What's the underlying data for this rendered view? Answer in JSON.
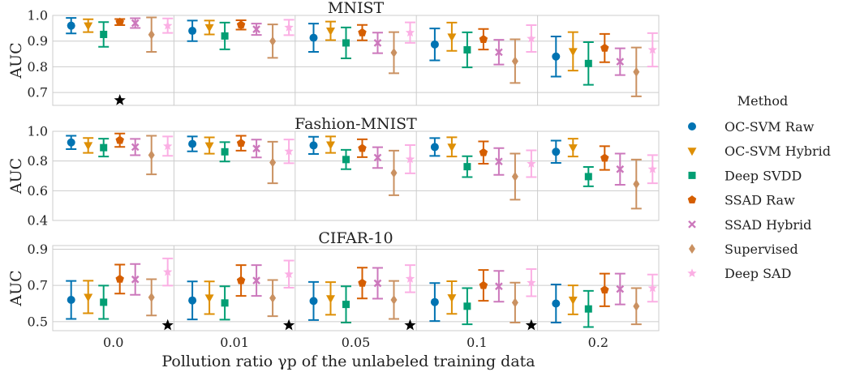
{
  "chart_data": {
    "type": "scatter",
    "description": "Mean AUC with error bars (std) per method and pollution ratio",
    "xlabel": "Pollution ratio γp of the unlabeled training data",
    "x_categories": [
      "0.0",
      "0.01",
      "0.05",
      "0.1",
      "0.2"
    ],
    "legend": {
      "title": "Method",
      "placement": "right"
    },
    "methods": [
      {
        "name": "OC-SVM Raw",
        "color": "#0173b2",
        "marker": "circle"
      },
      {
        "name": "OC-SVM Hybrid",
        "color": "#de8f05",
        "marker": "triangle-down"
      },
      {
        "name": "Deep SVDD",
        "color": "#029e73",
        "marker": "square"
      },
      {
        "name": "SSAD Raw",
        "color": "#d55e00",
        "marker": "pentagon"
      },
      {
        "name": "SSAD Hybrid",
        "color": "#cc78bc",
        "marker": "x"
      },
      {
        "name": "Supervised",
        "color": "#ca9161",
        "marker": "diamond"
      },
      {
        "name": "Deep SAD",
        "color": "#fbafe4",
        "marker": "star"
      }
    ],
    "panels": [
      {
        "title": "MNIST",
        "ylabel": "AUC",
        "ylim": [
          0.65,
          1.0
        ],
        "yticks": [
          "0.7",
          "0.8",
          "0.9",
          "1.0"
        ],
        "yticks_values": [
          0.7,
          0.8,
          0.9,
          1.0
        ],
        "best_markers": [
          {
            "x_index": 0,
            "method_index": 3,
            "y": 0.67
          }
        ],
        "series": [
          {
            "method": "OC-SVM Raw",
            "mean": [
              0.96,
              0.94,
              0.913,
              0.887,
              0.84
            ],
            "err": [
              0.03,
              0.04,
              0.055,
              0.062,
              0.078
            ]
          },
          {
            "method": "OC-SVM Hybrid",
            "mean": [
              0.96,
              0.953,
              0.94,
              0.917,
              0.86
            ],
            "err": [
              0.025,
              0.027,
              0.036,
              0.055,
              0.075
            ]
          },
          {
            "method": "Deep SVDD",
            "mean": [
              0.926,
              0.92,
              0.893,
              0.866,
              0.813
            ],
            "err": [
              0.048,
              0.052,
              0.06,
              0.068,
              0.083
            ]
          },
          {
            "method": "SSAD Raw",
            "mean": [
              0.974,
              0.963,
              0.933,
              0.907,
              0.873
            ],
            "err": [
              0.012,
              0.018,
              0.03,
              0.04,
              0.055
            ]
          },
          {
            "method": "SSAD Hybrid",
            "mean": [
              0.97,
              0.946,
              0.893,
              0.857,
              0.82
            ],
            "err": [
              0.019,
              0.022,
              0.04,
              0.048,
              0.052
            ]
          },
          {
            "method": "Supervised",
            "mean": [
              0.925,
              0.9,
              0.855,
              0.822,
              0.78
            ],
            "err": [
              0.067,
              0.065,
              0.08,
              0.085,
              0.095
            ]
          },
          {
            "method": "Deep SAD",
            "mean": [
              0.96,
              0.953,
              0.933,
              0.91,
              0.866
            ],
            "err": [
              0.028,
              0.03,
              0.04,
              0.052,
              0.065
            ]
          }
        ]
      },
      {
        "title": "Fashion-MNIST",
        "ylabel": "AUC",
        "ylim": [
          0.4,
          1.0
        ],
        "yticks": [
          "0.4",
          "0.6",
          "0.8",
          "1.0"
        ],
        "yticks_values": [
          0.4,
          0.6,
          0.8,
          1.0
        ],
        "best_markers": [],
        "series": [
          {
            "method": "OC-SVM Raw",
            "mean": [
              0.925,
              0.915,
              0.905,
              0.894,
              0.862
            ],
            "err": [
              0.045,
              0.05,
              0.058,
              0.06,
              0.075
            ]
          },
          {
            "method": "OC-SVM Hybrid",
            "mean": [
              0.905,
              0.904,
              0.91,
              0.895,
              0.89
            ],
            "err": [
              0.05,
              0.055,
              0.055,
              0.065,
              0.06
            ]
          },
          {
            "method": "Deep SVDD",
            "mean": [
              0.89,
              0.862,
              0.81,
              0.762,
              0.695
            ],
            "err": [
              0.06,
              0.065,
              0.065,
              0.07,
              0.065
            ]
          },
          {
            "method": "SSAD Raw",
            "mean": [
              0.94,
              0.92,
              0.886,
              0.857,
              0.82
            ],
            "err": [
              0.045,
              0.05,
              0.06,
              0.075,
              0.08
            ]
          },
          {
            "method": "SSAD Hybrid",
            "mean": [
              0.894,
              0.884,
              0.823,
              0.797,
              0.745
            ],
            "err": [
              0.055,
              0.06,
              0.07,
              0.09,
              0.105
            ]
          },
          {
            "method": "Supervised",
            "mean": [
              0.84,
              0.79,
              0.72,
              0.695,
              0.645
            ],
            "err": [
              0.13,
              0.14,
              0.15,
              0.155,
              0.165
            ]
          },
          {
            "method": "Deep SAD",
            "mean": [
              0.9,
              0.865,
              0.812,
              0.782,
              0.745
            ],
            "err": [
              0.065,
              0.08,
              0.095,
              0.09,
              0.095
            ]
          }
        ]
      },
      {
        "title": "CIFAR-10",
        "ylabel": "AUC",
        "ylim": [
          0.45,
          0.92
        ],
        "yticks": [
          "0.5",
          "0.7",
          "0.9"
        ],
        "yticks_values": [
          0.5,
          0.7,
          0.9
        ],
        "best_markers": [
          {
            "x_index": 0,
            "method_index": 6,
            "y": 0.48
          },
          {
            "x_index": 1,
            "method_index": 6,
            "y": 0.48
          },
          {
            "x_index": 2,
            "method_index": 6,
            "y": 0.48
          },
          {
            "x_index": 3,
            "method_index": 6,
            "y": 0.48
          }
        ],
        "series": [
          {
            "method": "OC-SVM Raw",
            "mean": [
              0.62,
              0.617,
              0.614,
              0.608,
              0.6
            ],
            "err": [
              0.105,
              0.105,
              0.105,
              0.105,
              0.105
            ]
          },
          {
            "method": "OC-SVM Hybrid",
            "mean": [
              0.636,
              0.632,
              0.628,
              0.633,
              0.62
            ],
            "err": [
              0.09,
              0.09,
              0.09,
              0.09,
              0.08
            ]
          },
          {
            "method": "Deep SVDD",
            "mean": [
              0.607,
              0.603,
              0.595,
              0.585,
              0.57
            ],
            "err": [
              0.092,
              0.092,
              0.1,
              0.1,
              0.1
            ]
          },
          {
            "method": "SSAD Raw",
            "mean": [
              0.735,
              0.727,
              0.713,
              0.7,
              0.675
            ],
            "err": [
              0.08,
              0.085,
              0.085,
              0.085,
              0.09
            ]
          },
          {
            "method": "SSAD Hybrid",
            "mean": [
              0.733,
              0.727,
              0.712,
              0.695,
              0.68
            ],
            "err": [
              0.085,
              0.085,
              0.085,
              0.085,
              0.085
            ]
          },
          {
            "method": "Supervised",
            "mean": [
              0.634,
              0.63,
              0.62,
              0.605,
              0.585
            ],
            "err": [
              0.1,
              0.1,
              0.105,
              0.11,
              0.1
            ]
          },
          {
            "method": "Deep SAD",
            "mean": [
              0.774,
              0.762,
              0.737,
              0.715,
              0.685
            ],
            "err": [
              0.075,
              0.075,
              0.075,
              0.075,
              0.075
            ]
          }
        ]
      }
    ]
  }
}
